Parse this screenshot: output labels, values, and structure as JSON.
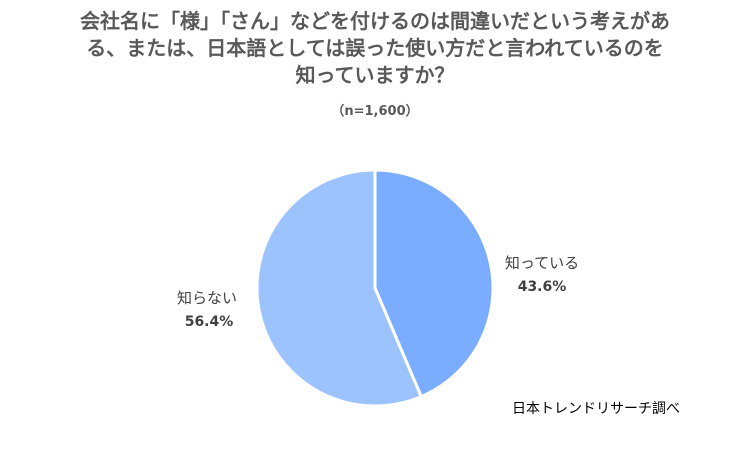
{
  "chart_data": {
    "type": "pie",
    "title_lines": [
      "会社名に「様」「さん」などを付けるのは間違いだという考えがあ",
      "る、または、日本語としては誤った使い方だと言われているのを",
      "知っていますか？"
    ],
    "subtitle": "（n=1,600）",
    "slices": [
      {
        "label": "知っている",
        "value": 43.6,
        "value_label": "43.6%",
        "color": "#7AADFF"
      },
      {
        "label": "知らない",
        "value": 56.4,
        "value_label": "56.4%",
        "color": "#9DC3FF"
      }
    ],
    "source": "日本トレンドリサーチ調べ"
  }
}
